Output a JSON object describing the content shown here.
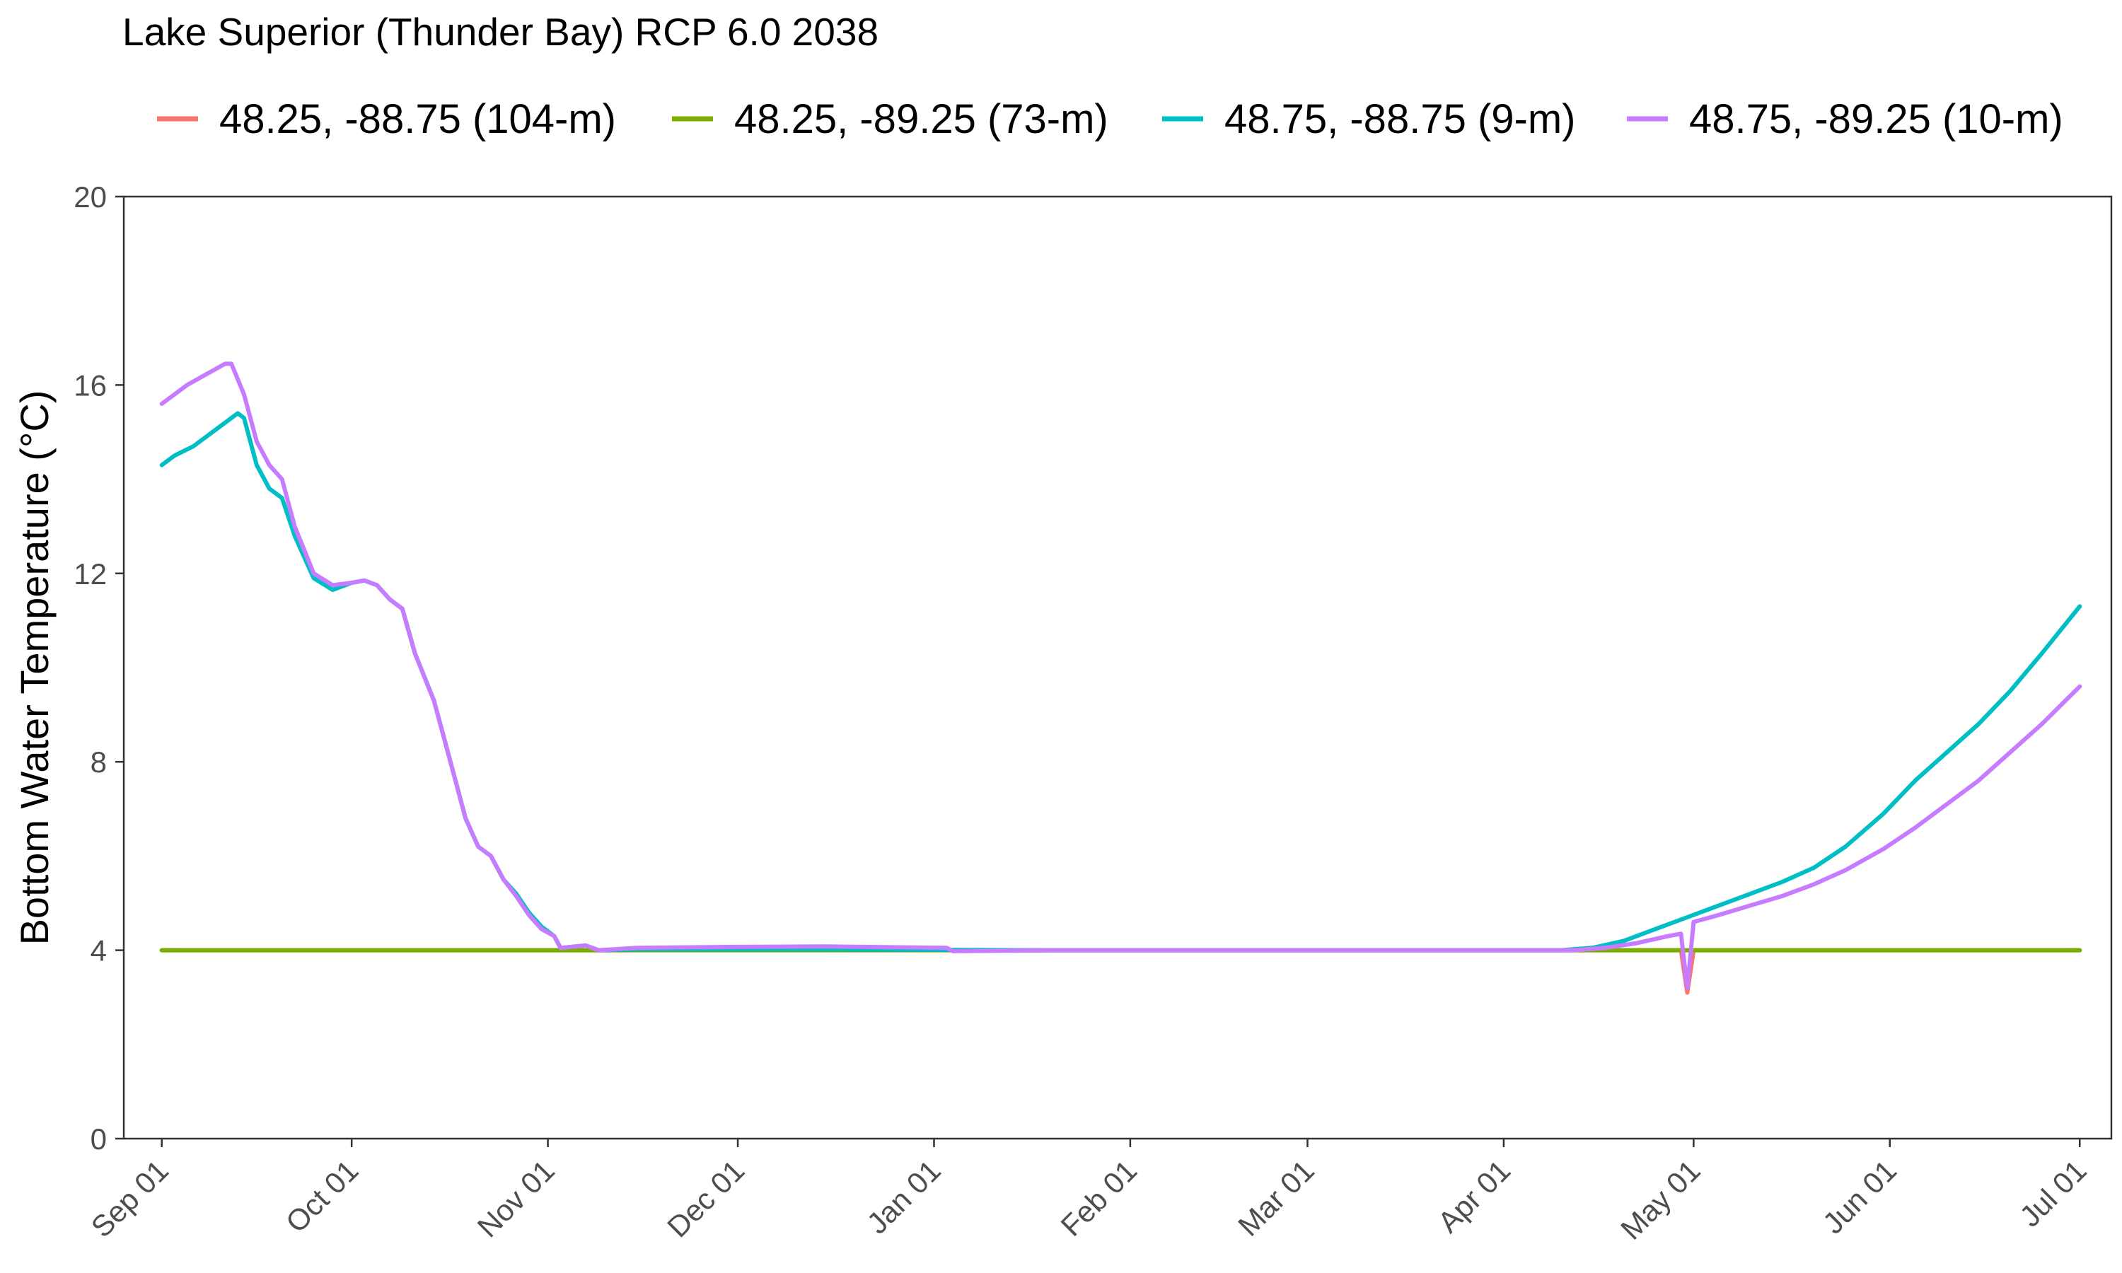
{
  "chart_data": {
    "type": "line",
    "title": "Lake Superior (Thunder Bay) RCP 6.0 2038",
    "xlabel": "",
    "ylabel": "Bottom Water Temperature (°C)",
    "ylim": [
      0,
      20
    ],
    "yticks": [
      0,
      4,
      8,
      12,
      16,
      20
    ],
    "xlim": [
      "2038-08-26",
      "2039-07-06"
    ],
    "xticks": [
      {
        "date": "2038-09-01",
        "label": "Sep 01"
      },
      {
        "date": "2038-10-01",
        "label": "Oct 01"
      },
      {
        "date": "2038-11-01",
        "label": "Nov 01"
      },
      {
        "date": "2038-12-01",
        "label": "Dec 01"
      },
      {
        "date": "2039-01-01",
        "label": "Jan 01"
      },
      {
        "date": "2039-02-01",
        "label": "Feb 01"
      },
      {
        "date": "2039-03-01",
        "label": "Mar 01"
      },
      {
        "date": "2039-04-01",
        "label": "Apr 01"
      },
      {
        "date": "2039-05-01",
        "label": "May 01"
      },
      {
        "date": "2039-06-01",
        "label": "Jun 01"
      },
      {
        "date": "2039-07-01",
        "label": "Jul 01"
      }
    ],
    "grid": false,
    "legend_position": "top",
    "series": [
      {
        "name": "48.25, -88.75 (104-m)",
        "color": "#F8766D",
        "points": [
          [
            "2038-09-01",
            4.0
          ],
          [
            "2039-04-29",
            4.0
          ],
          [
            "2039-04-30",
            3.1
          ],
          [
            "2039-05-01",
            4.0
          ],
          [
            "2039-07-01",
            4.0
          ]
        ]
      },
      {
        "name": "48.25, -89.25 (73-m)",
        "color": "#7CAE00",
        "points": [
          [
            "2038-09-01",
            4.0
          ],
          [
            "2039-07-01",
            4.0
          ]
        ]
      },
      {
        "name": "48.75, -88.75 (9-m)",
        "color": "#00BFC4",
        "points": [
          [
            "2038-09-01",
            14.3
          ],
          [
            "2038-09-03",
            14.5
          ],
          [
            "2038-09-06",
            14.7
          ],
          [
            "2038-09-09",
            15.0
          ],
          [
            "2038-09-11",
            15.2
          ],
          [
            "2038-09-13",
            15.4
          ],
          [
            "2038-09-14",
            15.3
          ],
          [
            "2038-09-16",
            14.3
          ],
          [
            "2038-09-18",
            13.8
          ],
          [
            "2038-09-20",
            13.6
          ],
          [
            "2038-09-22",
            12.8
          ],
          [
            "2038-09-25",
            11.9
          ],
          [
            "2038-09-28",
            11.65
          ],
          [
            "2038-10-01",
            11.8
          ],
          [
            "2038-10-03",
            11.85
          ],
          [
            "2038-10-05",
            11.75
          ],
          [
            "2038-10-07",
            11.45
          ],
          [
            "2038-10-09",
            11.25
          ],
          [
            "2038-10-11",
            10.3
          ],
          [
            "2038-10-14",
            9.3
          ],
          [
            "2038-10-17",
            7.8
          ],
          [
            "2038-10-19",
            6.8
          ],
          [
            "2038-10-21",
            6.2
          ],
          [
            "2038-10-23",
            6.0
          ],
          [
            "2038-10-25",
            5.5
          ],
          [
            "2038-10-27",
            5.2
          ],
          [
            "2038-10-29",
            4.8
          ],
          [
            "2038-10-31",
            4.5
          ],
          [
            "2038-11-02",
            4.3
          ],
          [
            "2038-11-03",
            4.05
          ],
          [
            "2038-11-07",
            4.1
          ],
          [
            "2038-11-09",
            4.0
          ],
          [
            "2038-11-15",
            4.02
          ],
          [
            "2038-12-15",
            4.02
          ],
          [
            "2039-01-15",
            4.0
          ],
          [
            "2039-04-10",
            4.0
          ],
          [
            "2039-04-15",
            4.05
          ],
          [
            "2039-04-20",
            4.2
          ],
          [
            "2039-04-25",
            4.45
          ],
          [
            "2039-04-30",
            4.7
          ],
          [
            "2039-05-05",
            4.95
          ],
          [
            "2039-05-10",
            5.2
          ],
          [
            "2039-05-15",
            5.45
          ],
          [
            "2039-05-20",
            5.75
          ],
          [
            "2039-05-25",
            6.2
          ],
          [
            "2039-05-31",
            6.9
          ],
          [
            "2039-06-05",
            7.6
          ],
          [
            "2039-06-10",
            8.2
          ],
          [
            "2039-06-15",
            8.8
          ],
          [
            "2039-06-20",
            9.5
          ],
          [
            "2039-06-25",
            10.3
          ],
          [
            "2039-07-01",
            11.3
          ]
        ]
      },
      {
        "name": "48.75, -89.25 (10-m)",
        "color": "#C77CFF",
        "points": [
          [
            "2038-09-01",
            15.6
          ],
          [
            "2038-09-05",
            16.0
          ],
          [
            "2038-09-09",
            16.3
          ],
          [
            "2038-09-11",
            16.45
          ],
          [
            "2038-09-12",
            16.45
          ],
          [
            "2038-09-14",
            15.8
          ],
          [
            "2038-09-16",
            14.8
          ],
          [
            "2038-09-18",
            14.3
          ],
          [
            "2038-09-20",
            14.0
          ],
          [
            "2038-09-22",
            13.0
          ],
          [
            "2038-09-25",
            12.0
          ],
          [
            "2038-09-28",
            11.75
          ],
          [
            "2038-10-01",
            11.8
          ],
          [
            "2038-10-03",
            11.85
          ],
          [
            "2038-10-05",
            11.75
          ],
          [
            "2038-10-07",
            11.45
          ],
          [
            "2038-10-09",
            11.25
          ],
          [
            "2038-10-11",
            10.3
          ],
          [
            "2038-10-14",
            9.3
          ],
          [
            "2038-10-17",
            7.8
          ],
          [
            "2038-10-19",
            6.8
          ],
          [
            "2038-10-21",
            6.2
          ],
          [
            "2038-10-23",
            6.0
          ],
          [
            "2038-10-25",
            5.5
          ],
          [
            "2038-10-27",
            5.15
          ],
          [
            "2038-10-29",
            4.75
          ],
          [
            "2038-10-31",
            4.45
          ],
          [
            "2038-11-02",
            4.3
          ],
          [
            "2038-11-03",
            4.05
          ],
          [
            "2038-11-07",
            4.1
          ],
          [
            "2038-11-09",
            4.0
          ],
          [
            "2038-11-15",
            4.05
          ],
          [
            "2038-12-01",
            4.07
          ],
          [
            "2038-12-15",
            4.08
          ],
          [
            "2039-01-03",
            4.05
          ],
          [
            "2039-01-04",
            3.98
          ],
          [
            "2039-01-20",
            4.0
          ],
          [
            "2039-04-12",
            4.0
          ],
          [
            "2039-04-17",
            4.05
          ],
          [
            "2039-04-22",
            4.15
          ],
          [
            "2039-04-27",
            4.3
          ],
          [
            "2039-04-29",
            4.35
          ],
          [
            "2039-04-30",
            3.2
          ],
          [
            "2039-05-01",
            4.6
          ],
          [
            "2039-05-05",
            4.75
          ],
          [
            "2039-05-10",
            4.95
          ],
          [
            "2039-05-15",
            5.15
          ],
          [
            "2039-05-20",
            5.4
          ],
          [
            "2039-05-25",
            5.7
          ],
          [
            "2039-05-31",
            6.15
          ],
          [
            "2039-06-05",
            6.6
          ],
          [
            "2039-06-10",
            7.1
          ],
          [
            "2039-06-15",
            7.6
          ],
          [
            "2039-06-20",
            8.2
          ],
          [
            "2039-06-25",
            8.8
          ],
          [
            "2039-07-01",
            9.6
          ]
        ]
      }
    ]
  }
}
